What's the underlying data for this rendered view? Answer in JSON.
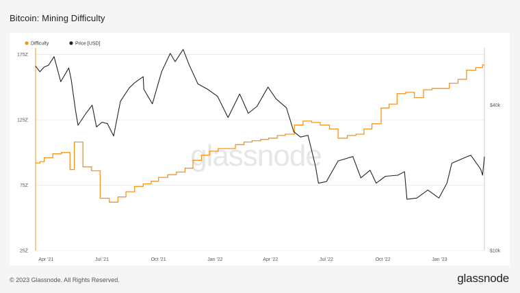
{
  "title": "Bitcoin: Mining Difficulty",
  "footer": {
    "copyright": "© 2023 Glassnode. All Rights Reserved.",
    "logo": "glassnode"
  },
  "watermark": "glassnode",
  "chart_data": {
    "type": "line",
    "legend": [
      {
        "name": "Difficulty",
        "color": "#f7931a"
      },
      {
        "name": "Price [USD]",
        "color": "#222222"
      }
    ],
    "x_ticks": [
      "Apr '21",
      "Jul '21",
      "Oct '21",
      "Jan '22",
      "Apr '22",
      "Jul '22",
      "Oct '22",
      "Jan '23"
    ],
    "y_left": {
      "ticks": [
        "25Z",
        "75Z",
        "125Z",
        "175Z"
      ],
      "range": [
        25,
        180
      ],
      "unit": "Z"
    },
    "y_right": {
      "ticks": [
        "$10k",
        "$40k"
      ],
      "scale": "log",
      "range": [
        10000,
        69000
      ]
    },
    "x_range": [
      "2021-03-15",
      "2023-03-15"
    ],
    "series": [
      {
        "name": "Difficulty",
        "color": "#f7931a",
        "points": [
          [
            "2021-03-15",
            92
          ],
          [
            "2021-03-22",
            93
          ],
          [
            "2021-03-29",
            96
          ],
          [
            "2021-04-12",
            99
          ],
          [
            "2021-04-26",
            100
          ],
          [
            "2021-05-10",
            87
          ],
          [
            "2021-05-17",
            108
          ],
          [
            "2021-05-31",
            89
          ],
          [
            "2021-06-14",
            86
          ],
          [
            "2021-06-28",
            65
          ],
          [
            "2021-07-13",
            62
          ],
          [
            "2021-07-27",
            66
          ],
          [
            "2021-08-09",
            70
          ],
          [
            "2021-08-23",
            74
          ],
          [
            "2021-09-06",
            76
          ],
          [
            "2021-09-19",
            78
          ],
          [
            "2021-10-01",
            81
          ],
          [
            "2021-10-16",
            83
          ],
          [
            "2021-10-30",
            85
          ],
          [
            "2021-11-13",
            88
          ],
          [
            "2021-11-26",
            94
          ],
          [
            "2021-12-10",
            98
          ],
          [
            "2021-12-23",
            101
          ],
          [
            "2022-01-06",
            103
          ],
          [
            "2022-01-20",
            103
          ],
          [
            "2022-02-03",
            106
          ],
          [
            "2022-02-17",
            108
          ],
          [
            "2022-03-02",
            109
          ],
          [
            "2022-03-16",
            110
          ],
          [
            "2022-03-29",
            111
          ],
          [
            "2022-04-12",
            113
          ],
          [
            "2022-04-25",
            114
          ],
          [
            "2022-05-10",
            121
          ],
          [
            "2022-05-24",
            124
          ],
          [
            "2022-06-07",
            123
          ],
          [
            "2022-06-21",
            121
          ],
          [
            "2022-07-06",
            118
          ],
          [
            "2022-07-20",
            111
          ],
          [
            "2022-08-04",
            113
          ],
          [
            "2022-08-18",
            114
          ],
          [
            "2022-08-31",
            118
          ],
          [
            "2022-09-13",
            122
          ],
          [
            "2022-09-28",
            134
          ],
          [
            "2022-10-11",
            137
          ],
          [
            "2022-10-24",
            145
          ],
          [
            "2022-11-07",
            146
          ],
          [
            "2022-11-21",
            142
          ],
          [
            "2022-12-06",
            148
          ],
          [
            "2022-12-20",
            149
          ],
          [
            "2023-01-03",
            149
          ],
          [
            "2023-01-17",
            153
          ],
          [
            "2023-01-31",
            156
          ],
          [
            "2023-02-14",
            163
          ],
          [
            "2023-03-01",
            165
          ],
          [
            "2023-03-12",
            167
          ]
        ]
      },
      {
        "name": "Price [USD]",
        "color": "#222222",
        "points": [
          [
            "2021-03-15",
            58000
          ],
          [
            "2021-03-22",
            55000
          ],
          [
            "2021-03-29",
            57500
          ],
          [
            "2021-04-05",
            58500
          ],
          [
            "2021-04-14",
            63500
          ],
          [
            "2021-04-25",
            50000
          ],
          [
            "2021-05-08",
            57000
          ],
          [
            "2021-05-12",
            51000
          ],
          [
            "2021-05-19",
            38000
          ],
          [
            "2021-05-23",
            33000
          ],
          [
            "2021-06-05",
            37000
          ],
          [
            "2021-06-15",
            40000
          ],
          [
            "2021-06-22",
            32500
          ],
          [
            "2021-07-01",
            34000
          ],
          [
            "2021-07-10",
            33500
          ],
          [
            "2021-07-20",
            29800
          ],
          [
            "2021-07-31",
            41500
          ],
          [
            "2021-08-14",
            47000
          ],
          [
            "2021-08-23",
            49500
          ],
          [
            "2021-09-06",
            52500
          ],
          [
            "2021-09-07",
            46500
          ],
          [
            "2021-09-21",
            40500
          ],
          [
            "2021-10-06",
            55000
          ],
          [
            "2021-10-20",
            65500
          ],
          [
            "2021-10-28",
            60500
          ],
          [
            "2021-11-10",
            68000
          ],
          [
            "2021-11-20",
            58500
          ],
          [
            "2021-12-04",
            49000
          ],
          [
            "2021-12-20",
            46500
          ],
          [
            "2022-01-05",
            43500
          ],
          [
            "2022-01-22",
            35500
          ],
          [
            "2022-02-10",
            44500
          ],
          [
            "2022-02-24",
            37000
          ],
          [
            "2022-03-10",
            39500
          ],
          [
            "2022-03-28",
            47500
          ],
          [
            "2022-04-10",
            42500
          ],
          [
            "2022-04-27",
            39000
          ],
          [
            "2022-05-09",
            31000
          ],
          [
            "2022-05-20",
            29500
          ],
          [
            "2022-06-01",
            30000
          ],
          [
            "2022-06-13",
            22500
          ],
          [
            "2022-06-18",
            19000
          ],
          [
            "2022-07-01",
            19300
          ],
          [
            "2022-07-20",
            23500
          ],
          [
            "2022-08-13",
            24500
          ],
          [
            "2022-08-26",
            20000
          ],
          [
            "2022-09-10",
            21500
          ],
          [
            "2022-09-20",
            19000
          ],
          [
            "2022-10-05",
            20300
          ],
          [
            "2022-10-25",
            20500
          ],
          [
            "2022-11-05",
            21200
          ],
          [
            "2022-11-09",
            16300
          ],
          [
            "2022-11-25",
            16500
          ],
          [
            "2022-12-13",
            17800
          ],
          [
            "2022-12-31",
            16500
          ],
          [
            "2023-01-13",
            19000
          ],
          [
            "2023-01-21",
            23000
          ],
          [
            "2023-02-15",
            24500
          ],
          [
            "2023-02-21",
            24800
          ],
          [
            "2023-03-09",
            21700
          ],
          [
            "2023-03-12",
            20500
          ],
          [
            "2023-03-15",
            24500
          ]
        ]
      }
    ]
  }
}
